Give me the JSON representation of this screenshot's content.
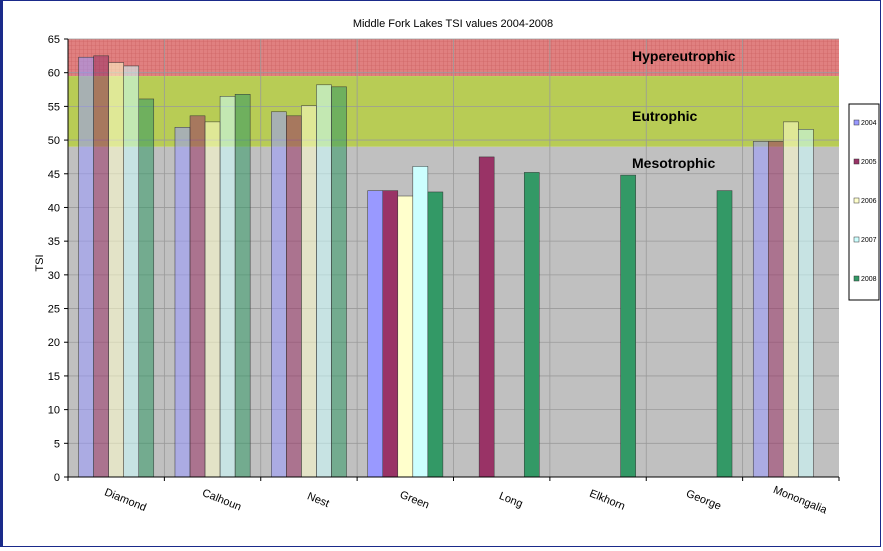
{
  "chart_data": {
    "type": "bar",
    "title": "Middle Fork Lakes TSI values 2004-2008",
    "xlabel": "",
    "ylabel": "TSI",
    "ylim": [
      0,
      65
    ],
    "yticks": [
      0,
      5,
      10,
      15,
      20,
      25,
      30,
      35,
      40,
      45,
      50,
      55,
      60,
      65
    ],
    "grid": true,
    "legend_position": "right",
    "categories": [
      "Diamond",
      "Calhoun",
      "Nest",
      "Green",
      "Long",
      "Elkhorn",
      "George",
      "Monongalia"
    ],
    "series": [
      {
        "name": "2004",
        "color": "#9999ff",
        "values": [
          62.3,
          51.9,
          54.2,
          42.5,
          null,
          null,
          null,
          49.8
        ]
      },
      {
        "name": "2005",
        "color": "#993366",
        "values": [
          62.5,
          53.6,
          53.6,
          42.5,
          47.5,
          null,
          null,
          49.8
        ]
      },
      {
        "name": "2006",
        "color": "#ffffcc",
        "values": [
          61.5,
          52.7,
          55.1,
          41.7,
          null,
          null,
          null,
          52.7
        ]
      },
      {
        "name": "2007",
        "color": "#ccffff",
        "values": [
          61.0,
          56.5,
          58.2,
          46.1,
          null,
          null,
          null,
          51.6
        ]
      },
      {
        "name": "2008",
        "color": "#339966",
        "values": [
          56.1,
          56.8,
          57.9,
          42.3,
          45.2,
          44.8,
          42.5,
          null
        ]
      }
    ],
    "zones": [
      {
        "label": "Hypereutrophic",
        "from": 59.5,
        "to": 65,
        "color": "#e08080"
      },
      {
        "label": "Eutrophic",
        "from": 49,
        "to": 59.5,
        "color": "#b8cc55"
      },
      {
        "label": "Mesotrophic",
        "from": 0,
        "to": 49,
        "color": "#c0c0c0"
      }
    ]
  }
}
